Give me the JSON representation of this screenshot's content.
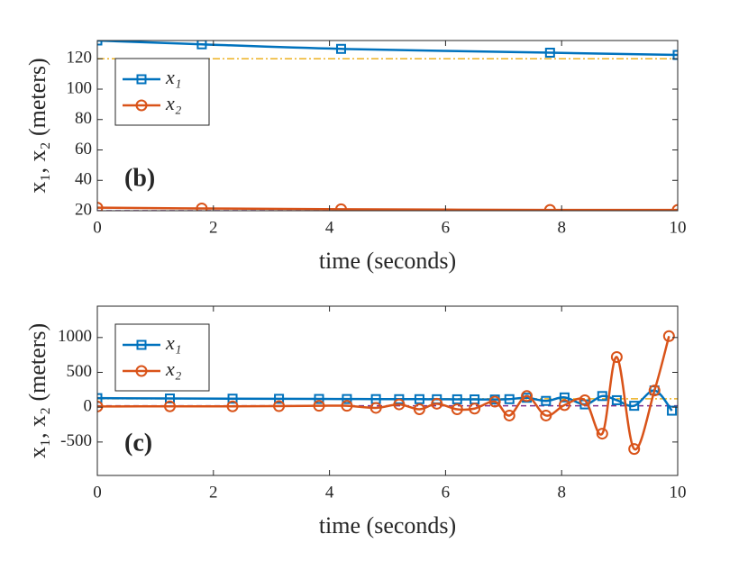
{
  "chart_data": [
    {
      "type": "line",
      "annotation": "(b)",
      "xlabel": "time (seconds)",
      "ylabel": "x₁, x₂ (meters)",
      "xlim": [
        0,
        10
      ],
      "xticks": [
        0,
        2,
        4,
        6,
        8,
        10
      ],
      "ylim": [
        20,
        132
      ],
      "yticks": [
        20,
        40,
        60,
        80,
        100,
        120
      ],
      "legend": "upper left",
      "reference_lines": [
        {
          "value": 120,
          "color": "#EDB120",
          "style": "dashdot"
        },
        {
          "value": 20,
          "color": "#7E2F8E",
          "style": "dashed"
        }
      ],
      "series": [
        {
          "name": "x₁",
          "color": "#0072BD",
          "marker": "square",
          "x": [
            0,
            1.8,
            4.2,
            7.8,
            10
          ],
          "values": [
            132,
            129.5,
            126.5,
            124,
            122.5
          ]
        },
        {
          "name": "x₂",
          "color": "#D95319",
          "marker": "circle",
          "x": [
            0,
            1.8,
            4.2,
            7.8,
            10
          ],
          "values": [
            22,
            21.5,
            21,
            20.5,
            20.5
          ]
        }
      ]
    },
    {
      "type": "line",
      "annotation": "(c)",
      "xlabel": "time (seconds)",
      "ylabel": "x₁, x₂ (meters)",
      "xlim": [
        0,
        10
      ],
      "xticks": [
        0,
        2,
        4,
        6,
        8,
        10
      ],
      "ylim": [
        -980,
        1450
      ],
      "yticks": [
        -500,
        0,
        500,
        1000
      ],
      "legend": "upper left",
      "reference_lines": [
        {
          "value": 120,
          "color": "#EDB120",
          "style": "dashdot"
        },
        {
          "value": 20,
          "color": "#7E2F8E",
          "style": "dashed"
        }
      ],
      "series": [
        {
          "name": "x₁",
          "color": "#0072BD",
          "marker": "square",
          "x": [
            0,
            1.25,
            2.33,
            3.13,
            3.82,
            4.3,
            4.8,
            5.2,
            5.55,
            5.85,
            6.2,
            6.5,
            6.85,
            7.1,
            7.4,
            7.73,
            8.05,
            8.4,
            8.7,
            8.95,
            9.25,
            9.6,
            9.9
          ],
          "values": [
            130,
            125,
            122,
            120,
            118,
            117,
            116,
            115,
            115,
            114,
            113,
            112,
            110,
            115,
            135,
            90,
            140,
            40,
            160,
            100,
            20,
            240,
            -50
          ]
        },
        {
          "name": "x₂",
          "color": "#D95319",
          "marker": "circle",
          "x": [
            0,
            1.25,
            2.33,
            3.13,
            3.82,
            4.3,
            4.8,
            5.2,
            5.55,
            5.85,
            6.2,
            6.5,
            6.85,
            7.1,
            7.4,
            7.73,
            8.05,
            8.4,
            8.7,
            8.95,
            9.25,
            9.6,
            9.85
          ],
          "values": [
            10,
            12,
            12,
            15,
            20,
            20,
            -10,
            40,
            -30,
            50,
            -30,
            -20,
            80,
            -120,
            160,
            -120,
            30,
            100,
            -380,
            720,
            -600,
            240,
            1020
          ]
        }
      ]
    }
  ]
}
